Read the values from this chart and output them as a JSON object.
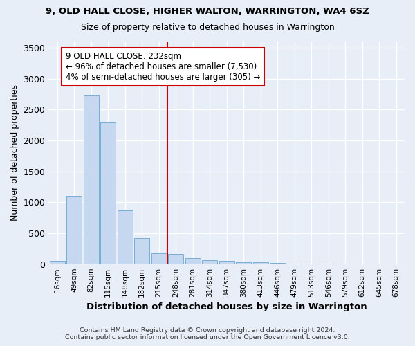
{
  "title_line1": "9, OLD HALL CLOSE, HIGHER WALTON, WARRINGTON, WA4 6SZ",
  "title_line2": "Size of property relative to detached houses in Warrington",
  "xlabel": "Distribution of detached houses by size in Warrington",
  "ylabel": "Number of detached properties",
  "bar_labels": [
    "16sqm",
    "49sqm",
    "82sqm",
    "115sqm",
    "148sqm",
    "182sqm",
    "215sqm",
    "248sqm",
    "281sqm",
    "314sqm",
    "347sqm",
    "380sqm",
    "413sqm",
    "446sqm",
    "479sqm",
    "513sqm",
    "546sqm",
    "579sqm",
    "612sqm",
    "645sqm",
    "678sqm"
  ],
  "bar_values": [
    55,
    1100,
    2730,
    2290,
    870,
    425,
    175,
    165,
    95,
    65,
    50,
    35,
    25,
    15,
    10,
    8,
    5,
    3,
    2,
    2,
    2
  ],
  "bar_color": "#c5d8f0",
  "bar_edge_color": "#7aadd4",
  "vline_color": "#cc0000",
  "annotation_text": "9 OLD HALL CLOSE: 232sqm\n← 96% of detached houses are smaller (7,530)\n4% of semi-detached houses are larger (305) →",
  "annotation_box_color": "#ffffff",
  "annotation_box_edge": "#cc0000",
  "ylim": [
    0,
    3600
  ],
  "yticks": [
    0,
    500,
    1000,
    1500,
    2000,
    2500,
    3000,
    3500
  ],
  "footer_line1": "Contains HM Land Registry data © Crown copyright and database right 2024.",
  "footer_line2": "Contains public sector information licensed under the Open Government Licence v3.0.",
  "bg_color": "#e8eef8",
  "grid_color": "#ffffff",
  "plot_bg_color": "#e8eef8"
}
